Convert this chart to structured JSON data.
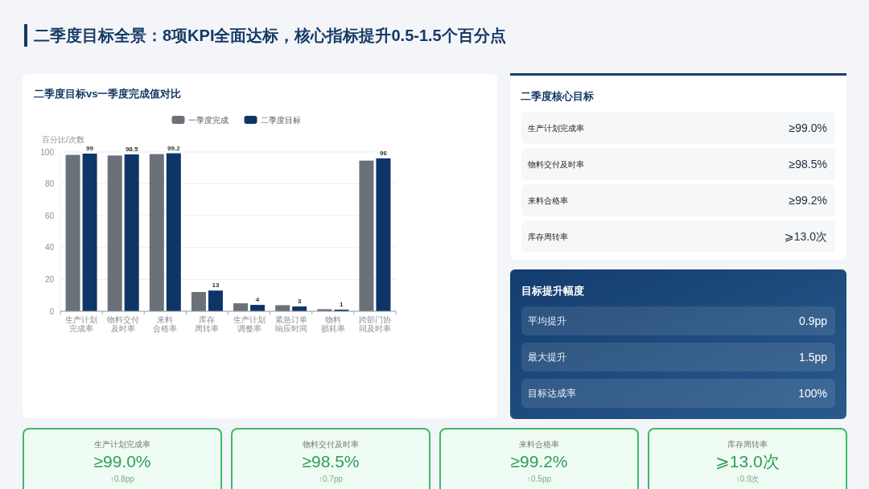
{
  "chart_data": [
    {
      "type": "other",
      "title": "二季度目标全景：8项KPI全面达标，核心指标提升0.5-1.5个百分点"
    },
    {
      "type": "bar",
      "title": "二季度目标vs一季度完成值对比",
      "ylabel": "百分比/次数",
      "categories": [
        "生产计划完成率",
        "物料交付及时率",
        "来料合格率",
        "库存周转率",
        "生产计划调整率",
        "紧急订单响应时间",
        "物料损耗率",
        "跨部门协同及时率"
      ],
      "series": [
        {
          "name": "一季度完成",
          "color": "#6b7178",
          "values": [
            98.2,
            97.8,
            98.7,
            12.1,
            5.0,
            3.8,
            1.3,
            94.6
          ]
        },
        {
          "name": "二季度目标",
          "color": "#0e3566",
          "values": [
            99,
            98.5,
            99.2,
            13,
            4,
            3,
            1,
            96
          ],
          "value_labels": [
            "99",
            "98.5",
            "99.2",
            "13",
            "4",
            "3",
            "1",
            "96"
          ]
        }
      ],
      "ylim": [
        0,
        100
      ],
      "yticks": [
        0,
        20,
        40,
        60,
        80,
        100
      ],
      "grid": "y",
      "legend": "top"
    },
    {
      "type": "other",
      "title": "二季度核心目标",
      "annotations": [
        "生产计划完成率",
        "≥99.0%",
        "物料交付及时率",
        "≥98.5%",
        "来料合格率",
        "≥99.2%",
        "库存周转率",
        "⩾13.0次"
      ]
    },
    {
      "type": "other",
      "title": "目标提升幅度",
      "annotations": [
        "平均提升",
        "0.9pp",
        "最大提升",
        "1.5pp",
        "目标达成率",
        "100%"
      ]
    },
    {
      "type": "other",
      "annotations": [
        "生产计划完成率",
        "≥99.0%",
        "↑0.8pp",
        "物料交付及时率",
        "≥98.5%",
        "↑0.7pp",
        "来料合格率",
        "≥99.2%",
        "↑0.5pp",
        "库存周转率",
        "⩾13.0次",
        "↑0.9次"
      ]
    }
  ]
}
